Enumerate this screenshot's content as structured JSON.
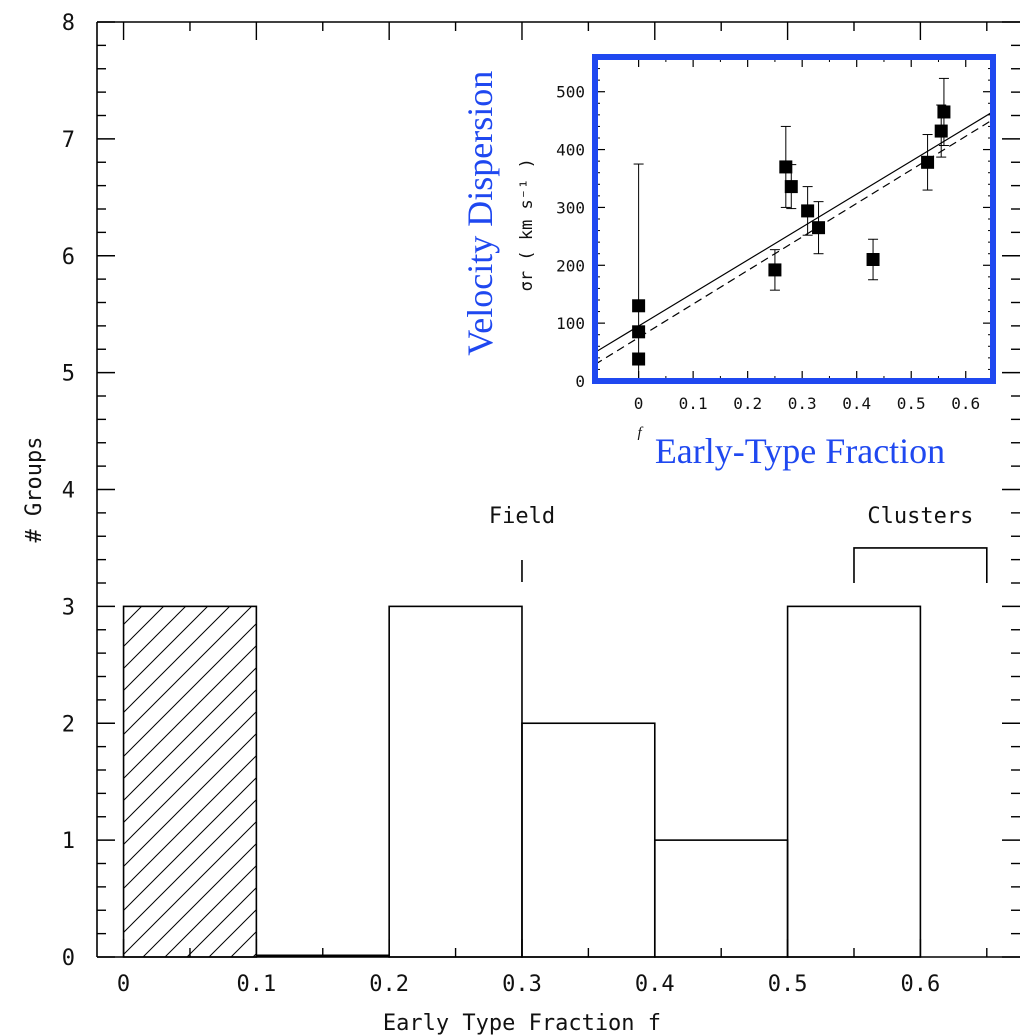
{
  "chart_data": [
    {
      "type": "bar",
      "xlabel": "Early Type Fraction f",
      "ylabel": "# Groups",
      "xlim": [
        -0.02,
        0.675
      ],
      "ylim": [
        0,
        8
      ],
      "x_ticks": [
        "0",
        "0.1",
        "0.2",
        "0.3",
        "0.4",
        "0.5",
        "0.6"
      ],
      "y_ticks": [
        "0",
        "1",
        "2",
        "3",
        "4",
        "5",
        "6",
        "7",
        "8"
      ],
      "bins": [
        {
          "x0": 0.0,
          "x1": 0.1,
          "count": 3,
          "hatched": true
        },
        {
          "x0": 0.1,
          "x1": 0.2,
          "count": 0,
          "hatched": false
        },
        {
          "x0": 0.2,
          "x1": 0.3,
          "count": 3,
          "hatched": false
        },
        {
          "x0": 0.3,
          "x1": 0.4,
          "count": 2,
          "hatched": false
        },
        {
          "x0": 0.4,
          "x1": 0.5,
          "count": 1,
          "hatched": false
        },
        {
          "x0": 0.5,
          "x1": 0.6,
          "count": 3,
          "hatched": false
        }
      ],
      "annotations": [
        {
          "text": "Field",
          "x": 0.3,
          "marker": "tick"
        },
        {
          "text": "Clusters",
          "x_range": [
            0.55,
            0.65
          ],
          "level": 3.5,
          "marker": "bracket"
        }
      ]
    },
    {
      "type": "scatter",
      "title": "",
      "xlabel": "f",
      "ylabel": "σr ( km s⁻¹ )",
      "overlay_xlabel": "Early-Type Fraction",
      "overlay_ylabel": "Velocity Dispersion",
      "accent_color": "#1f48f0",
      "xlim": [
        -0.08,
        0.65
      ],
      "ylim": [
        0,
        560
      ],
      "x_ticks": [
        "0",
        "0.1",
        "0.2",
        "0.3",
        "0.4",
        "0.5",
        "0.6"
      ],
      "y_ticks": [
        "0",
        "100",
        "200",
        "300",
        "400",
        "500"
      ],
      "points": [
        {
          "x": 0.0,
          "y": 130,
          "err": 245
        },
        {
          "x": 0.0,
          "y": 85,
          "err": 0
        },
        {
          "x": 0.0,
          "y": 38,
          "err": 0
        },
        {
          "x": 0.25,
          "y": 192,
          "err": 35
        },
        {
          "x": 0.27,
          "y": 370,
          "err": 70
        },
        {
          "x": 0.28,
          "y": 336,
          "err": 38
        },
        {
          "x": 0.31,
          "y": 294,
          "err": 42
        },
        {
          "x": 0.33,
          "y": 265,
          "err": 45
        },
        {
          "x": 0.43,
          "y": 210,
          "err": 35
        },
        {
          "x": 0.53,
          "y": 378,
          "err": 48
        },
        {
          "x": 0.555,
          "y": 432,
          "err": 45
        },
        {
          "x": 0.56,
          "y": 465,
          "err": 58
        }
      ],
      "fits": [
        {
          "style": "solid",
          "intercept": 95,
          "slope": 570
        },
        {
          "style": "dashed",
          "intercept": 75,
          "slope": 580
        }
      ]
    }
  ]
}
